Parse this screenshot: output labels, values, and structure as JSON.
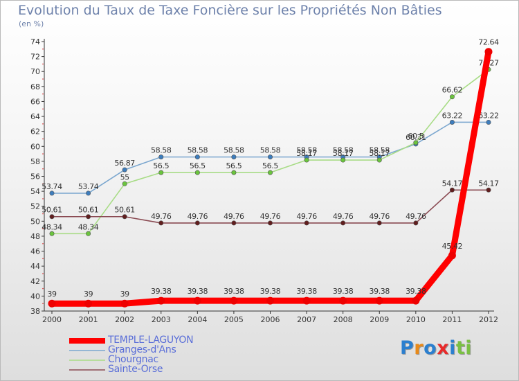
{
  "chart_data": {
    "type": "line",
    "title": "Evolution du Taux de Taxe Foncière sur les Propriétés Non Bâties",
    "unit_label": "(en %)",
    "x": [
      "2000",
      "2001",
      "2002",
      "2003",
      "2004",
      "2005",
      "2006",
      "2007",
      "2008",
      "2009",
      "2010",
      "2011",
      "2012"
    ],
    "ylim": [
      38,
      74
    ],
    "yticks": [
      38,
      40,
      42,
      44,
      46,
      48,
      50,
      52,
      54,
      56,
      58,
      60,
      62,
      64,
      66,
      68,
      70,
      72,
      74
    ],
    "grid": false,
    "legend_position": "bottom-left",
    "series": [
      {
        "name": "TEMPLE-LAGUYON",
        "color": "#ff0000",
        "markerColor": "#ee0000",
        "values": [
          39,
          39,
          39,
          39.38,
          39.38,
          39.38,
          39.38,
          39.38,
          39.38,
          39.38,
          39.38,
          45.42,
          72.64
        ],
        "labels": [
          "39",
          "39",
          "39",
          "39.38",
          "39.38",
          "39.38",
          "39.38",
          "39.38",
          "39.38",
          "39.38",
          "39.38",
          "45.42",
          "72.64"
        ]
      },
      {
        "name": "Granges-d'Ans",
        "color": "#7ba7cf",
        "markerColor": "#3d7dbd",
        "values": [
          53.74,
          53.74,
          56.87,
          58.58,
          58.58,
          58.58,
          58.58,
          58.58,
          58.58,
          58.58,
          60.31,
          63.22,
          63.22
        ],
        "labels": [
          "53.74",
          "53.74",
          "56.87",
          "58.58",
          "58.58",
          "58.58",
          "58.58",
          "58.58",
          "58.58",
          "58.58",
          "60.31",
          "63.22",
          "63.22"
        ]
      },
      {
        "name": "Chourgnac",
        "color": "#a8dc86",
        "markerColor": "#6ac43d",
        "values": [
          48.34,
          48.34,
          55,
          56.5,
          56.5,
          56.5,
          56.5,
          58.17,
          58.17,
          58.17,
          60.5,
          66.62,
          70.27
        ],
        "labels": [
          "48.34",
          "48.34",
          "55",
          "56.5",
          "56.5",
          "56.5",
          "56.5",
          "58.17",
          "58.17",
          "58.17",
          "60.5",
          "66.62",
          "70.27"
        ]
      },
      {
        "name": "Sainte-Orse",
        "color": "#8a4a52",
        "markerColor": "#611e1e",
        "values": [
          50.61,
          50.61,
          50.61,
          49.76,
          49.76,
          49.76,
          49.76,
          49.76,
          49.76,
          49.76,
          49.76,
          54.17,
          54.17
        ],
        "labels": [
          "50.61",
          "50.61",
          "50.61",
          "49.76",
          "49.76",
          "49.76",
          "49.76",
          "49.76",
          "49.76",
          "49.76",
          "49.76",
          "54.17",
          "54.17"
        ]
      }
    ]
  },
  "legend": {
    "items": [
      {
        "label": "TEMPLE-LAGUYON"
      },
      {
        "label": "Granges-d'Ans"
      },
      {
        "label": "Chourgnac"
      },
      {
        "label": "Sainte-Orse"
      }
    ]
  },
  "logo": {
    "letters": [
      {
        "char": "P",
        "color": "#2b7fcf"
      },
      {
        "char": "r",
        "color": "#e88a1a"
      },
      {
        "char": "o",
        "color": "#2b7fcf"
      },
      {
        "char": "x",
        "color": "#e82a2a"
      },
      {
        "char": "i",
        "color": "#2b7fcf"
      },
      {
        "char": "t",
        "color": "#7ac043"
      },
      {
        "char": "i",
        "color": "#7ac043"
      }
    ]
  }
}
